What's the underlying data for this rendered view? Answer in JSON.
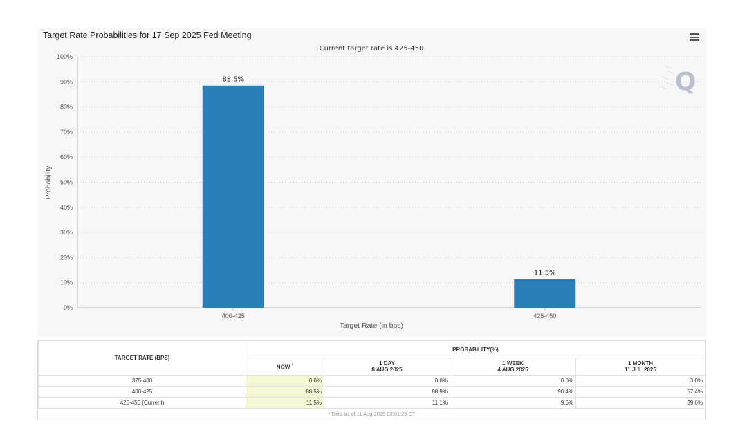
{
  "chart": {
    "title": "Target Rate Probabilities for 17 Sep 2025 Fed Meeting",
    "subtitle": "Current target rate is 425-450",
    "menu_icon": "hamburger-menu-icon",
    "watermark_icon": "Q"
  },
  "chart_data": {
    "type": "bar",
    "title": "Target Rate Probabilities for 17 Sep 2025 Fed Meeting",
    "subtitle": "Current target rate is 425-450",
    "categories": [
      "400-425",
      "425-450"
    ],
    "values": [
      88.5,
      11.5
    ],
    "data_labels": [
      "88.5%",
      "11.5%"
    ],
    "xlabel": "Target Rate (in bps)",
    "ylabel": "Probability",
    "ylim": [
      0,
      100
    ],
    "yticks": [
      "0%",
      "10%",
      "20%",
      "30%",
      "40%",
      "50%",
      "60%",
      "70%",
      "80%",
      "90%",
      "100%"
    ],
    "grid": true,
    "bar_color": "#2a7fb8"
  },
  "table": {
    "col_rate": "TARGET RATE (BPS)",
    "col_prob": "PROBABILITY(%)",
    "sub_headers": [
      {
        "line1": "NOW",
        "line2": "",
        "mark": "*"
      },
      {
        "line1": "1 DAY",
        "line2": "8 AUG 2025"
      },
      {
        "line1": "1 WEEK",
        "line2": "4 AUG 2025"
      },
      {
        "line1": "1 MONTH",
        "line2": "11 JUL 2025"
      }
    ],
    "rows": [
      {
        "rate": "375-400",
        "values": [
          "0.0%",
          "0.0%",
          "0.0%",
          "3.0%"
        ]
      },
      {
        "rate": "400-425",
        "values": [
          "88.5%",
          "88.9%",
          "90.4%",
          "57.4%"
        ]
      },
      {
        "rate": "425-450 (Current)",
        "values": [
          "11.5%",
          "11.1%",
          "9.6%",
          "39.6%"
        ]
      }
    ],
    "footnote": "* Data as of 11 Aug 2025 02:01:25 CT"
  }
}
